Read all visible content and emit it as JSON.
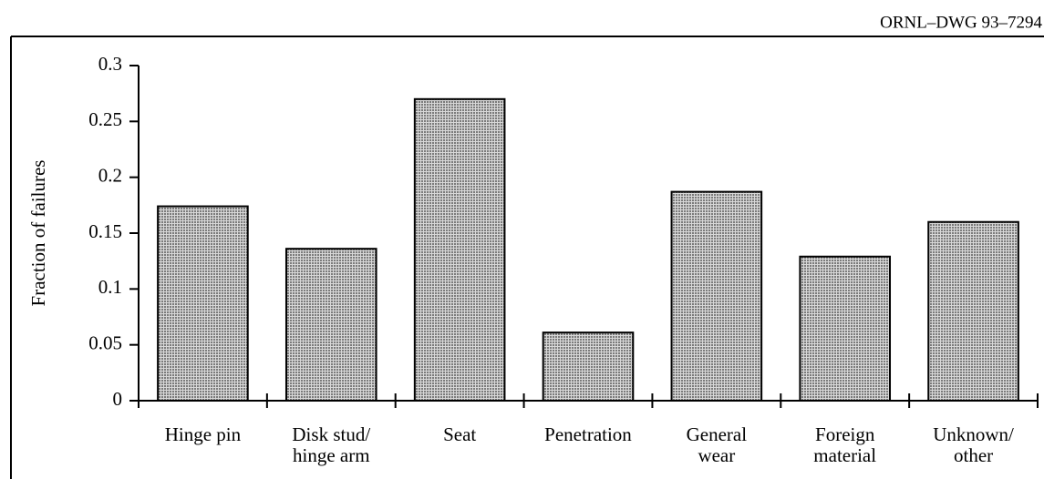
{
  "chart_data": {
    "type": "bar",
    "title": "ORNL–DWG 93–7294",
    "ylabel": "Fraction of failures",
    "categories": [
      "Hinge pin",
      "Disk stud/\nhinge arm",
      "Seat",
      "Penetration",
      "General\nwear",
      "Foreign\nmaterial",
      "Unknown/\nother"
    ],
    "values": [
      0.174,
      0.136,
      0.27,
      0.061,
      0.187,
      0.129,
      0.16
    ],
    "color": "#a9a9a9",
    "ylim": [
      0,
      0.3
    ],
    "yticks": [
      0,
      0.05,
      0.1,
      0.15,
      0.2,
      0.25,
      0.3
    ],
    "grid": false
  }
}
